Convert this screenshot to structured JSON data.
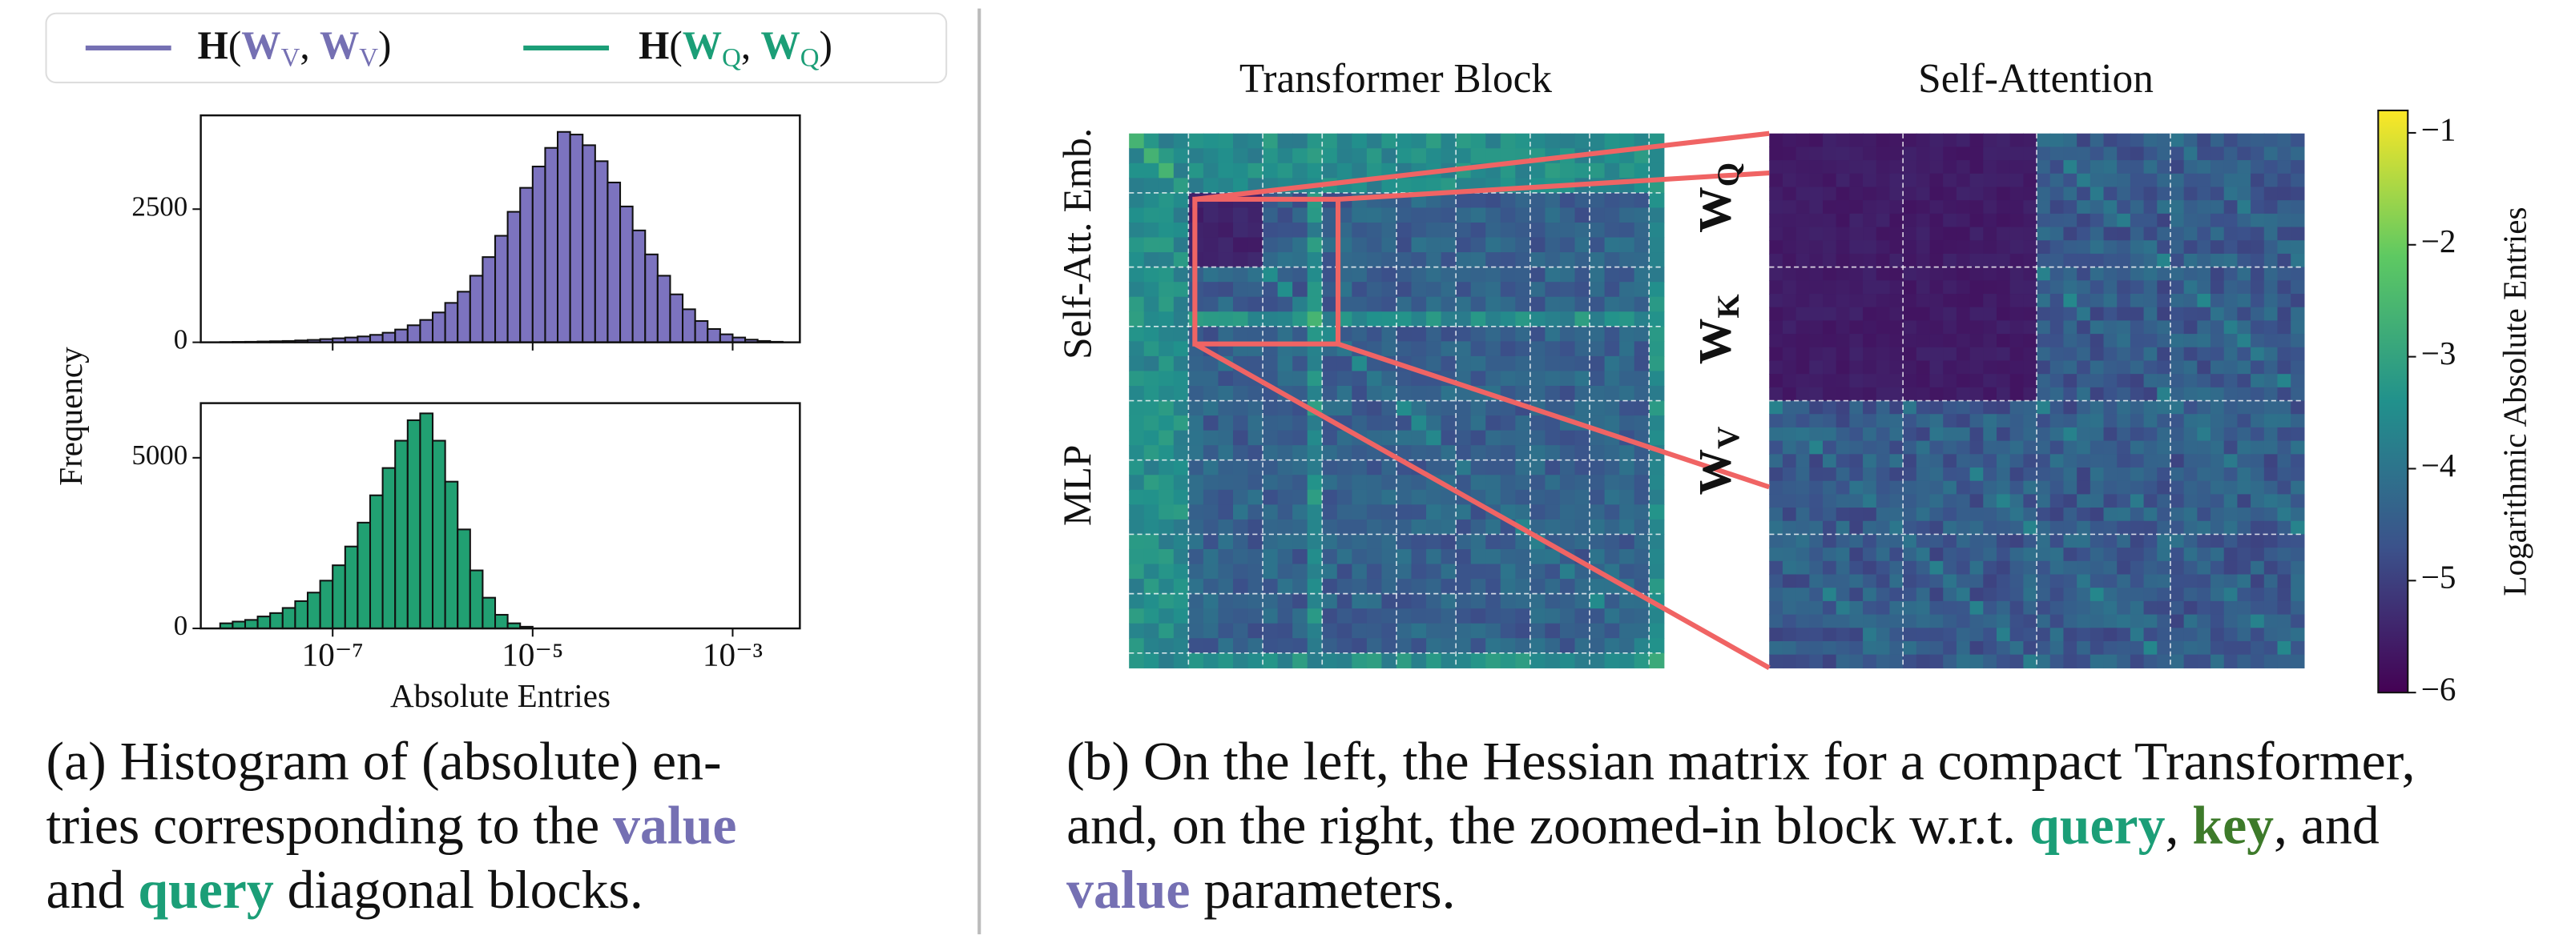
{
  "legend": [
    {
      "color": "#7570b3",
      "parts": [
        {
          "text": "H",
          "bold": true
        },
        {
          "text": "("
        },
        {
          "text": "W",
          "bold": true,
          "colored": true
        },
        {
          "text": "V",
          "sub": true,
          "colored": true
        },
        {
          "text": ", "
        },
        {
          "text": "W",
          "bold": true,
          "colored": true
        },
        {
          "text": "V",
          "sub": true,
          "colored": true
        },
        {
          "text": ")"
        }
      ]
    },
    {
      "color": "#1b9e77",
      "parts": [
        {
          "text": "H",
          "bold": true
        },
        {
          "text": "("
        },
        {
          "text": "W",
          "bold": true,
          "colored": true
        },
        {
          "text": "Q",
          "sub": true,
          "colored": true
        },
        {
          "text": ", "
        },
        {
          "text": "W",
          "bold": true,
          "colored": true
        },
        {
          "text": "Q",
          "sub": true,
          "colored": true
        },
        {
          "text": ")"
        }
      ]
    }
  ],
  "shared_axes": {
    "xlabel": "Absolute Entries",
    "ylabel": "Frequency"
  },
  "chart_data": [
    {
      "type": "histogram",
      "color": "#7c73bf",
      "xlog": true,
      "bins": [
        7.499e-09,
        1e-08,
        1.334e-08,
        1.778e-08,
        2.371e-08,
        3.162e-08,
        4.217e-08,
        5.623e-08,
        7.499e-08,
        1e-07,
        1.334e-07,
        1.778e-07,
        2.371e-07,
        3.162e-07,
        4.217e-07,
        5.623e-07,
        7.499e-07,
        1e-06,
        1.334e-06,
        1.778e-06,
        2.371e-06,
        3.162e-06,
        4.217e-06,
        5.623e-06,
        7.499e-06,
        1e-05,
        1.334e-05,
        1.778e-05,
        2.371e-05,
        3.162e-05,
        4.217e-05,
        5.623e-05,
        7.499e-05,
        0.0001,
        0.0001334,
        0.0001778,
        0.0002371,
        0.0003162,
        0.0004217,
        0.0005623,
        0.0007499,
        0.001,
        0.001334,
        0.001778,
        0.002371,
        0.003162
      ],
      "values": [
        5,
        8,
        10,
        15,
        20,
        25,
        35,
        45,
        60,
        75,
        90,
        110,
        140,
        180,
        240,
        320,
        420,
        560,
        740,
        950,
        1250,
        1600,
        2000,
        2450,
        2900,
        3300,
        3650,
        3950,
        3900,
        3700,
        3400,
        3000,
        2550,
        2100,
        1650,
        1250,
        900,
        620,
        400,
        250,
        150,
        90,
        50,
        25,
        10
      ],
      "xlim": [
        4.8e-09,
        0.0047
      ],
      "xticks": [
        1e-07,
        1e-05,
        0.001
      ],
      "ylim": [
        0,
        4260
      ],
      "yticks": [
        0,
        2500
      ]
    },
    {
      "type": "histogram",
      "color": "#21a072",
      "xlog": true,
      "bins": [
        7.499e-09,
        1e-08,
        1.334e-08,
        1.778e-08,
        2.371e-08,
        3.162e-08,
        4.217e-08,
        5.623e-08,
        7.499e-08,
        1e-07,
        1.334e-07,
        1.778e-07,
        2.371e-07,
        3.162e-07,
        4.217e-07,
        5.623e-07,
        7.499e-07,
        1e-06,
        1.334e-06,
        1.778e-06,
        2.371e-06,
        3.162e-06,
        4.217e-06,
        5.623e-06,
        7.499e-06,
        1e-05,
        1.334e-05,
        1.778e-05,
        2.371e-05,
        3.162e-05,
        4.217e-05,
        5.623e-05,
        7.499e-05,
        0.0001,
        0.0001334,
        0.0001778,
        0.0002371,
        0.0003162,
        0.0004217,
        0.0005623,
        0.0007499,
        0.001,
        0.001334,
        0.001778,
        0.002371,
        0.003162
      ],
      "values": [
        150,
        200,
        250,
        350,
        450,
        600,
        800,
        1050,
        1400,
        1850,
        2400,
        3100,
        3900,
        4700,
        5500,
        6100,
        6300,
        5500,
        4300,
        2900,
        1700,
        900,
        400,
        150,
        50,
        0,
        0,
        0,
        0,
        0,
        0,
        0,
        0,
        0,
        0,
        0,
        0,
        0,
        0,
        0,
        0,
        0,
        0,
        0,
        0
      ],
      "xlim": [
        4.8e-09,
        0.0047
      ],
      "xticks": [
        {
          "value": 1e-07,
          "label": "10⁻⁷"
        },
        {
          "value": 1e-05,
          "label": "10⁻⁵"
        },
        {
          "value": 0.001,
          "label": "10⁻³"
        }
      ],
      "ylim": [
        0,
        6600
      ],
      "yticks": [
        0,
        5000
      ]
    }
  ],
  "heatmap_panel": {
    "titles": [
      "Transformer Block",
      "Self-Attention"
    ],
    "row_labels": [
      "Self-Att. Emb.",
      "MLP"
    ],
    "param_labels": [
      {
        "text": "W",
        "sub": "Q",
        "color": "#1b9e77"
      },
      {
        "text": "W",
        "sub": "K",
        "color": "#3d7a2a"
      },
      {
        "text": "W",
        "sub": "V",
        "color": "#7570b3"
      }
    ],
    "colorbar": {
      "label": "Logarithmic Absolute Entries",
      "lim": [
        -6,
        -0.8
      ],
      "ticks": [
        {
          "value": -1,
          "label": "−1"
        },
        {
          "value": -2,
          "label": "−2"
        },
        {
          "value": -3,
          "label": "−3"
        },
        {
          "value": -4,
          "label": "−4"
        },
        {
          "value": -5,
          "label": "−5"
        },
        {
          "value": -6,
          "label": "−6"
        }
      ]
    }
  },
  "styles": {
    "value": "#7570b3",
    "query": "#1b9e77",
    "key": "#3d7a2a"
  },
  "captions": [
    [
      [
        {
          "text": "(a) Histogram of (absolute) en-"
        }
      ],
      [
        {
          "text": "tries corresponding to the "
        },
        {
          "text": "value",
          "style": "value"
        }
      ],
      [
        {
          "text": "and "
        },
        {
          "text": "query",
          "style": "query"
        },
        {
          "text": " diagonal blocks."
        }
      ]
    ],
    [
      [
        {
          "text": "(b) On the left, the Hessian matrix for a compact Transformer,"
        }
      ],
      [
        {
          "text": "and, on the right, the zoomed-in block w.r.t. "
        },
        {
          "text": "query",
          "style": "query"
        },
        {
          "text": ", "
        },
        {
          "text": "key",
          "style": "key"
        },
        {
          "text": ", and"
        }
      ],
      [
        {
          "text": "value",
          "style": "value"
        },
        {
          "text": " parameters."
        }
      ]
    ]
  ]
}
